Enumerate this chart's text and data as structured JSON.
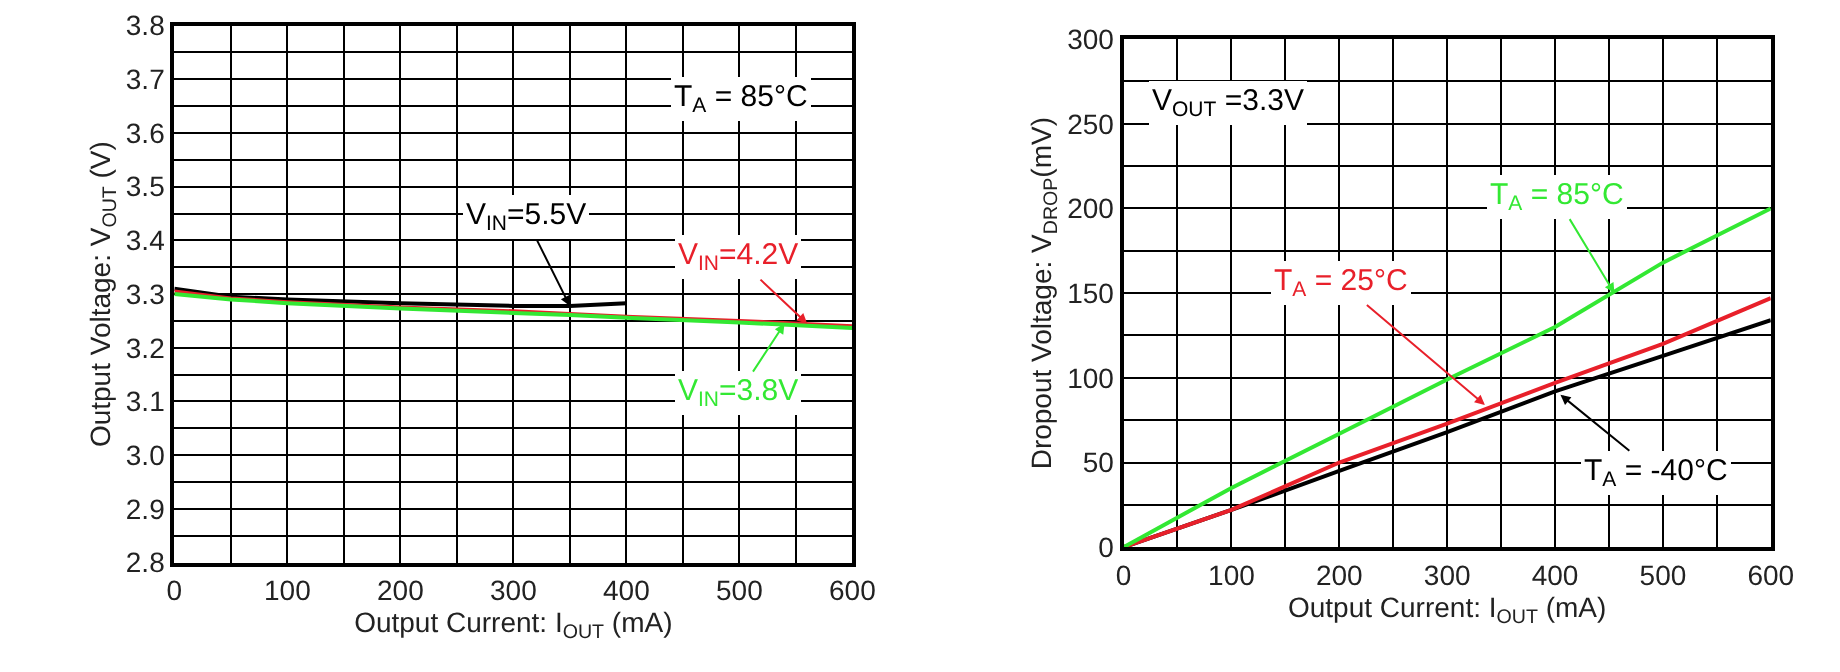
{
  "chart_data": [
    {
      "type": "line",
      "xlabel": "Output Current: I$_{OUT}$ (mA)",
      "ylabel": "Output Voltage: V$_{OUT}$ (V)",
      "x": [
        0,
        50,
        100,
        200,
        300,
        350,
        400,
        500,
        600
      ],
      "series": [
        {
          "color": "#000000",
          "values": [
            3.31,
            3.295,
            3.29,
            3.283,
            3.278,
            3.278,
            3.283,
            null,
            null
          ]
        },
        {
          "color": "#e8202a",
          "values": [
            3.305,
            3.292,
            3.285,
            3.275,
            3.268,
            3.263,
            3.258,
            3.25,
            3.24
          ]
        },
        {
          "color": "#33e833",
          "values": [
            3.3,
            3.29,
            3.283,
            3.273,
            3.265,
            3.261,
            3.256,
            3.247,
            3.237
          ]
        }
      ],
      "annotations": [
        {
          "text": "V$_{IN}$=5.5V",
          "x": 350,
          "y": 3.278
        },
        {
          "text": "V$_{IN}$=4.2V",
          "x": 560,
          "y": 3.245
        },
        {
          "text": "V$_{IN}$=3.8V",
          "x": 540,
          "y": 3.245
        },
        "T$_{A}$ = 85°C"
      ],
      "xlim": [
        0,
        600
      ],
      "xticks": [
        0,
        {
          "value": 50,
          "label": null
        },
        100,
        {
          "value": 150,
          "label": null
        },
        200,
        {
          "value": 250,
          "label": null
        },
        300,
        {
          "value": 350,
          "label": null
        },
        400,
        {
          "value": 450,
          "label": null
        },
        500,
        {
          "value": 550,
          "label": null
        },
        600
      ],
      "ylim": [
        2.8,
        3.8
      ],
      "yticks": [
        {
          "value": 2.8,
          "label": "2.8"
        },
        {
          "value": 2.85,
          "label": null
        },
        {
          "value": 2.9,
          "label": "2.9"
        },
        {
          "value": 2.95,
          "label": null
        },
        {
          "value": 3.0,
          "label": "3.0"
        },
        {
          "value": 3.05,
          "label": null
        },
        {
          "value": 3.1,
          "label": "3.1"
        },
        {
          "value": 3.15,
          "label": null
        },
        {
          "value": 3.2,
          "label": "3.2"
        },
        {
          "value": 3.25,
          "label": null
        },
        {
          "value": 3.3,
          "label": "3.3"
        },
        {
          "value": 3.35,
          "label": null
        },
        {
          "value": 3.4,
          "label": "3.4"
        },
        {
          "value": 3.45,
          "label": null
        },
        {
          "value": 3.5,
          "label": "3.5"
        },
        {
          "value": 3.55,
          "label": null
        },
        {
          "value": 3.6,
          "label": "3.6"
        },
        {
          "value": 3.65,
          "label": null
        },
        {
          "value": 3.7,
          "label": "3.7"
        },
        {
          "value": 3.75,
          "label": null
        },
        {
          "value": 3.8,
          "label": "3.8"
        }
      ],
      "grid": true,
      "marker": "none",
      "line_style": "solid"
    },
    {
      "type": "line",
      "xlabel": "Output Current: I$_{OUT}$ (mA)",
      "ylabel": "Dropout Voltage: V$_{DROP}$(mV)",
      "x": [
        0,
        100,
        200,
        300,
        400,
        500,
        600
      ],
      "series": [
        {
          "color": "#000000",
          "values": [
            0,
            22,
            45,
            68,
            92,
            113,
            134
          ]
        },
        {
          "color": "#e8202a",
          "values": [
            0,
            22,
            50,
            73,
            97,
            120,
            147
          ]
        },
        {
          "color": "#33e833",
          "values": [
            0,
            35,
            67,
            99,
            130,
            168,
            200
          ]
        }
      ],
      "annotations": [
        {
          "text": "T$_{A}$ = -40°C",
          "x": 405,
          "y": 90
        },
        {
          "text": "T$_{A}$ = 25°C",
          "x": 335,
          "y": 84
        },
        {
          "text": "T$_{A}$ = 85°C",
          "x": 455,
          "y": 150
        },
        "V$_{OUT}$ =3.3V"
      ],
      "xlim": [
        0,
        600
      ],
      "xticks": [
        0,
        {
          "value": 50,
          "label": null
        },
        100,
        {
          "value": 150,
          "label": null
        },
        200,
        {
          "value": 250,
          "label": null
        },
        300,
        {
          "value": 350,
          "label": null
        },
        400,
        {
          "value": 450,
          "label": null
        },
        500,
        {
          "value": 550,
          "label": null
        },
        600
      ],
      "ylim": [
        0,
        300
      ],
      "yticks": [
        0,
        {
          "value": 25,
          "label": null
        },
        50,
        {
          "value": 75,
          "label": null
        },
        100,
        {
          "value": 125,
          "label": null
        },
        150,
        {
          "value": 175,
          "label": null
        },
        200,
        {
          "value": 225,
          "label": null
        },
        250,
        {
          "value": 275,
          "label": null
        },
        300
      ],
      "grid": true,
      "marker": "none",
      "line_style": "solid"
    }
  ]
}
